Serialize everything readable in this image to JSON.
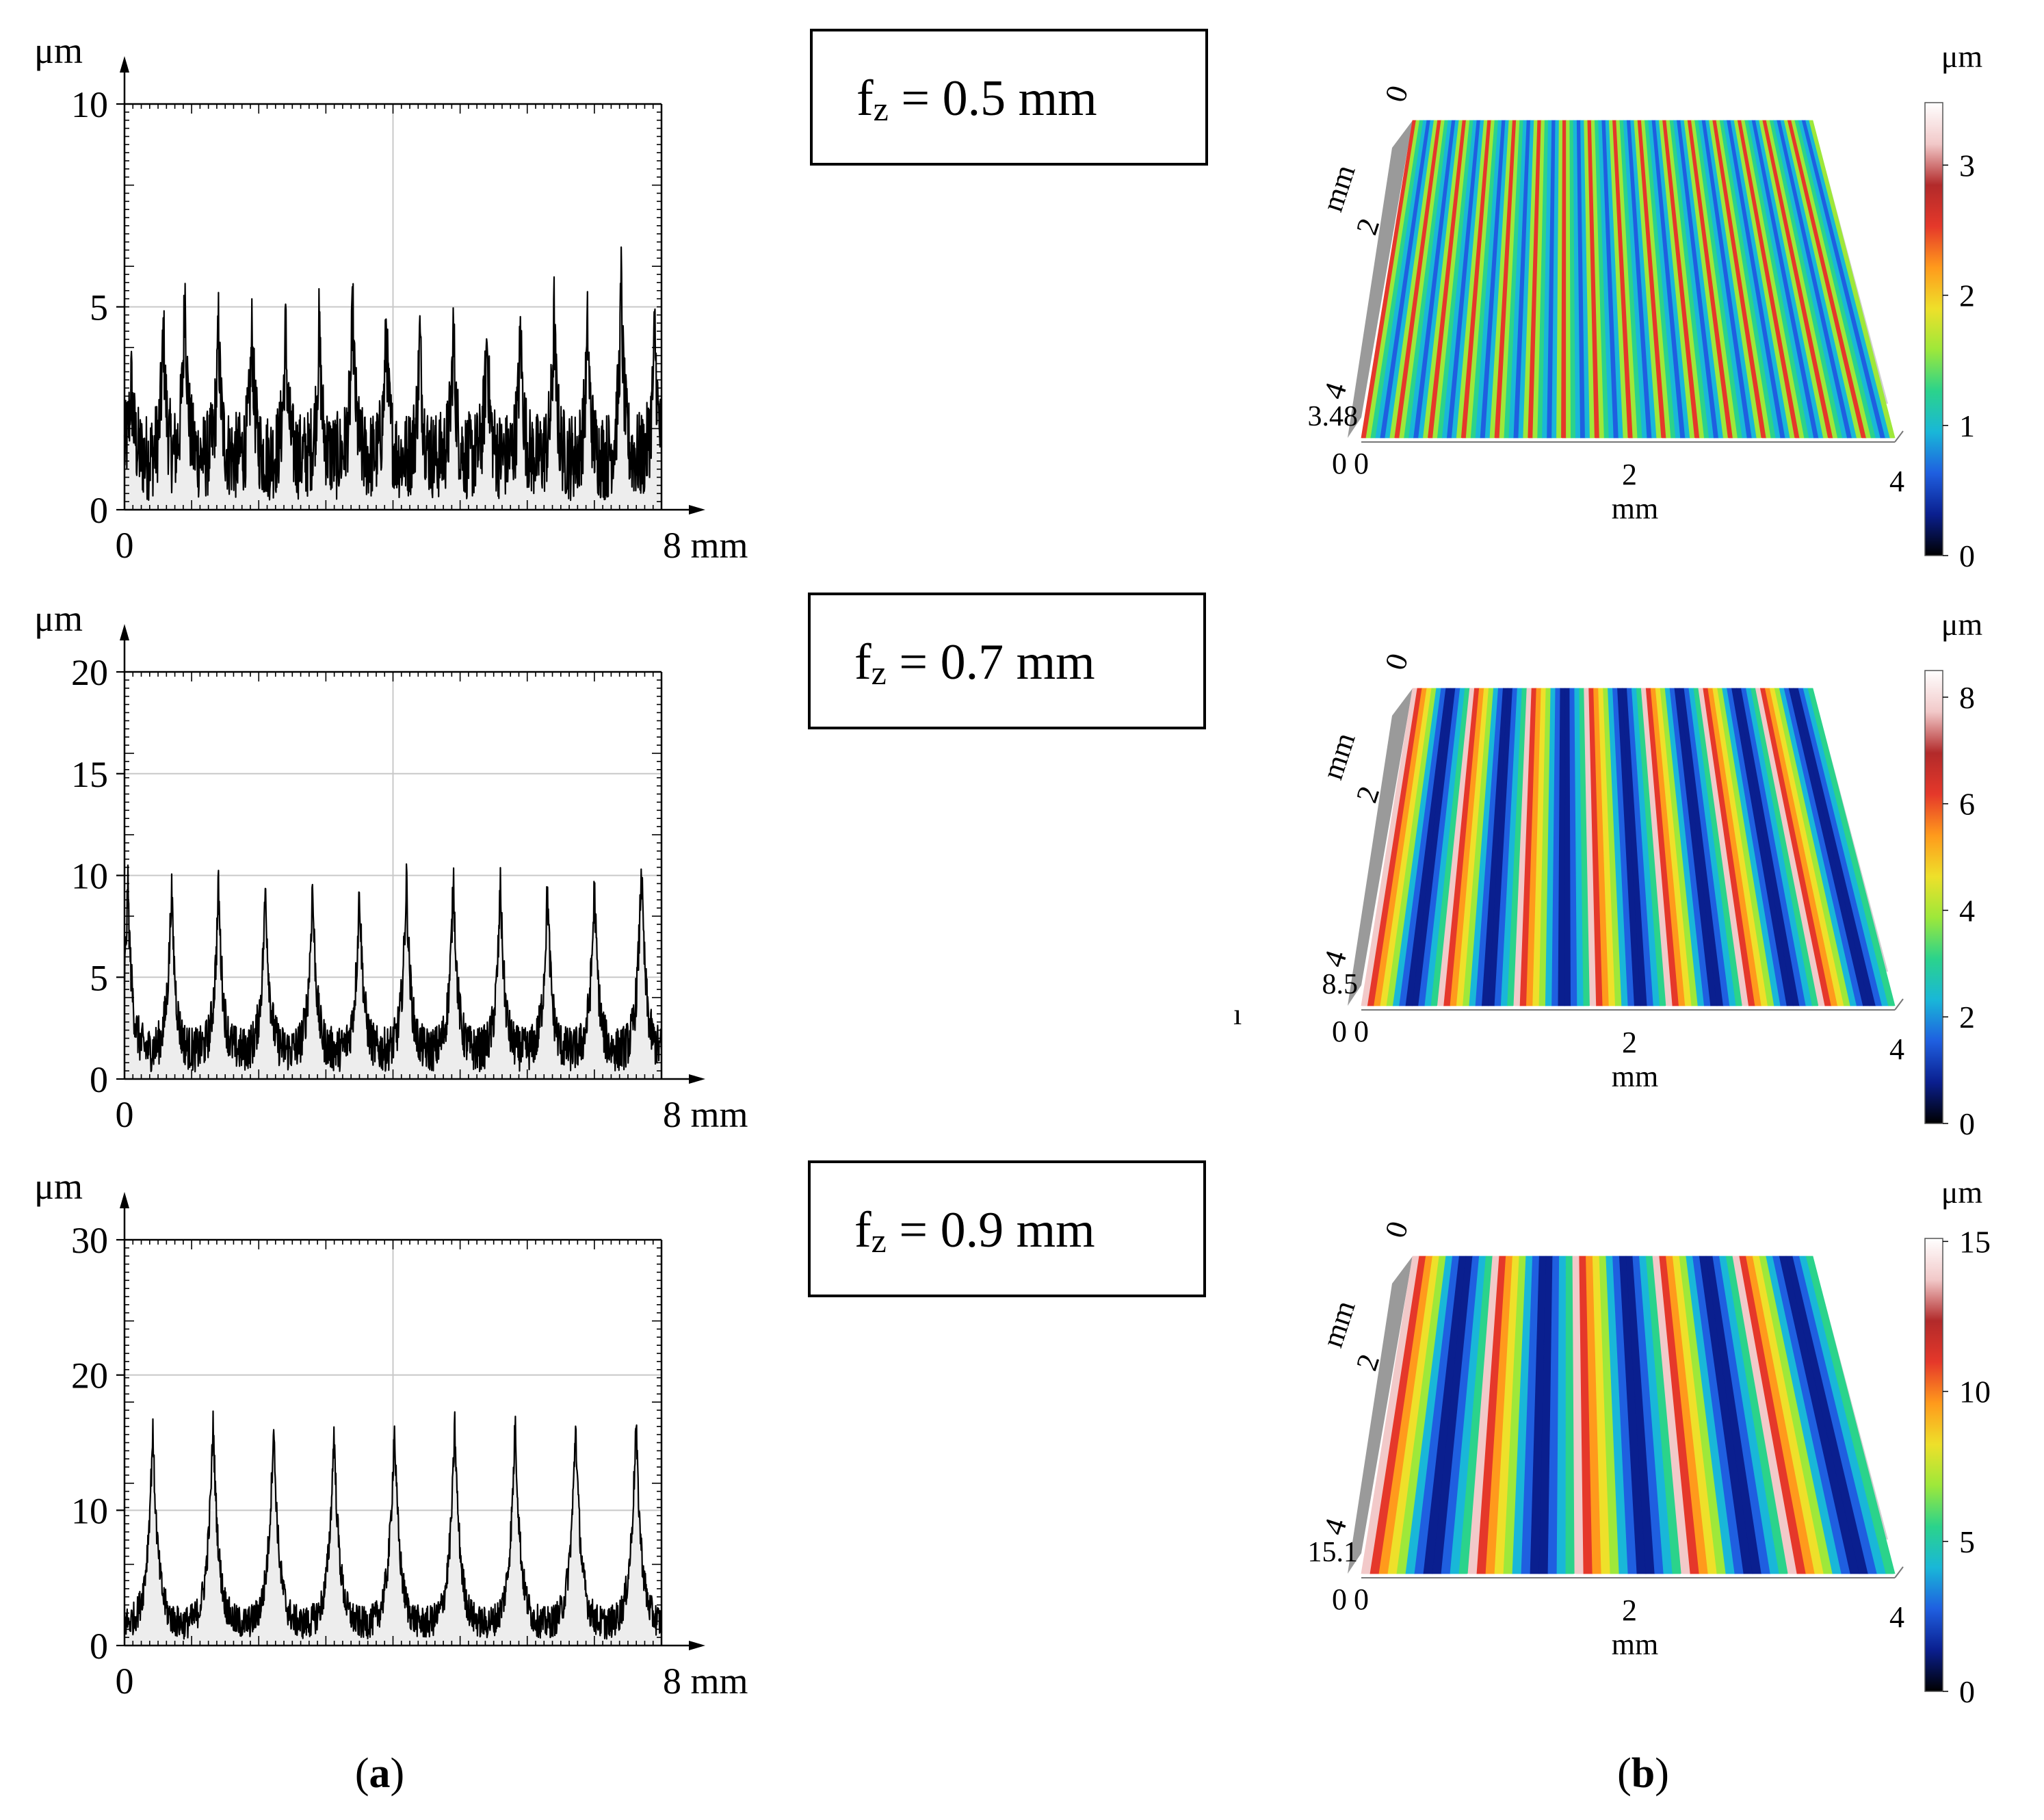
{
  "panel_labels": {
    "a": "a",
    "b": "b"
  },
  "chart_data": [
    {
      "type": "line",
      "panel": "a",
      "row": 0,
      "title": "",
      "xlabel": "",
      "ylabel": "",
      "x_unit": "mm",
      "y_unit": "μm",
      "xlim": [
        0,
        8
      ],
      "ylim": [
        0,
        10
      ],
      "xticks": [
        0,
        8
      ],
      "yticks": [
        0,
        5,
        10
      ],
      "grid": true,
      "fill_under": true,
      "series": [
        {
          "period_mm": 0.5,
          "base_um": 1.3,
          "peak_um": 3.4,
          "noise_um": 1.0,
          "peaks_x": [
            0.1,
            0.58,
            0.9,
            1.4,
            1.9,
            2.4,
            2.9,
            3.4,
            3.9,
            4.4,
            4.9,
            5.4,
            5.9,
            6.4,
            6.9,
            7.4,
            7.9
          ],
          "peaks_y": [
            3.2,
            4.5,
            5.6,
            4.5,
            4.5,
            4.5,
            4.6,
            5.0,
            4.6,
            4.4,
            4.5,
            4.4,
            4.5,
            4.8,
            4.6,
            5.6,
            4.6
          ]
        }
      ]
    },
    {
      "type": "line",
      "panel": "a",
      "row": 1,
      "title": "",
      "xlabel": "",
      "ylabel": "",
      "x_unit": "mm",
      "y_unit": "μm",
      "xlim": [
        0,
        8
      ],
      "ylim": [
        0,
        20
      ],
      "xticks": [
        0,
        8
      ],
      "yticks": [
        0,
        5,
        10,
        15,
        20
      ],
      "grid": true,
      "fill_under": true,
      "series": [
        {
          "period_mm": 0.7,
          "base_um": 1.4,
          "peak_um": 9.7,
          "noise_um": 1.0,
          "peaks_x": [
            0.05,
            0.7,
            1.4,
            2.1,
            2.8,
            3.5,
            4.2,
            4.9,
            5.6,
            6.3,
            7.0,
            7.7
          ],
          "peaks_y": [
            9.6,
            9.5,
            9.6,
            9.6,
            9.6,
            9.5,
            10.0,
            10.1,
            9.6,
            9.5,
            9.6,
            10.7
          ]
        }
      ]
    },
    {
      "type": "line",
      "panel": "a",
      "row": 2,
      "title": "",
      "xlabel": "",
      "ylabel": "",
      "x_unit": "mm",
      "y_unit": "μm",
      "xlim": [
        0,
        8
      ],
      "ylim": [
        0,
        30
      ],
      "xticks": [
        0,
        8
      ],
      "yticks": [
        0,
        10,
        20,
        30
      ],
      "grid": true,
      "fill_under": true,
      "series": [
        {
          "period_mm": 0.9,
          "base_um": 1.6,
          "peak_um": 16.3,
          "noise_um": 1.1,
          "peaks_x": [
            0.42,
            1.32,
            2.22,
            3.12,
            4.02,
            4.92,
            5.82,
            6.72,
            7.62
          ],
          "peaks_y": [
            16.1,
            16.7,
            16.5,
            16.0,
            16.3,
            16.4,
            16.7,
            16.6,
            16.6
          ]
        }
      ]
    }
  ],
  "feed_labels": [
    {
      "prefix": "f",
      "sub": "z",
      "value": " = 0.5 mm"
    },
    {
      "prefix": "f",
      "sub": "z",
      "value": " = 0.7 mm"
    },
    {
      "prefix": "f",
      "sub": "z",
      "value": " = 0.9 mm"
    }
  ],
  "surfaces": [
    {
      "unit": "μm",
      "colorbar_max": 3.48,
      "colorbar_ticks": [
        "0",
        "1",
        "2",
        "3"
      ],
      "colorbar_tick_values": [
        0,
        1,
        2,
        3
      ],
      "z_label": "3.48",
      "stripe_count": 16,
      "x_axis": {
        "ticks": [
          "0",
          "2",
          "4"
        ],
        "label": "mm"
      },
      "y_axis": {
        "ticks": [
          "0",
          "2",
          "4"
        ],
        "label": "mm"
      }
    },
    {
      "unit": "μm",
      "colorbar_max": 8.5,
      "colorbar_ticks": [
        "0",
        "2",
        "4",
        "6",
        "8"
      ],
      "colorbar_tick_values": [
        0,
        2,
        4,
        6,
        8
      ],
      "z_label": "8.5",
      "stripe_count": 7,
      "x_axis": {
        "ticks": [
          "0",
          "2",
          "4"
        ],
        "label": "mm"
      },
      "y_axis": {
        "ticks": [
          "0",
          "2",
          "4"
        ],
        "label": "mm"
      }
    },
    {
      "unit": "μm",
      "colorbar_max": 15.1,
      "colorbar_ticks": [
        "0",
        "5",
        "10",
        "15"
      ],
      "colorbar_tick_values": [
        0,
        5,
        10,
        15
      ],
      "z_label": "15.1",
      "stripe_count": 5,
      "x_axis": {
        "ticks": [
          "0",
          "2",
          "4"
        ],
        "label": "mm"
      },
      "y_axis": {
        "ticks": [
          "0",
          "2",
          "4"
        ],
        "label": "mm"
      }
    }
  ],
  "colormap": [
    "#000000",
    "#0a1f8f",
    "#1f5fe0",
    "#19b7d8",
    "#2bd38b",
    "#9ee83a",
    "#eee02a",
    "#ff9a1c",
    "#e5382a",
    "#b22a2a",
    "#f2c9c9",
    "#ffffff"
  ],
  "stray_mark": "ı"
}
